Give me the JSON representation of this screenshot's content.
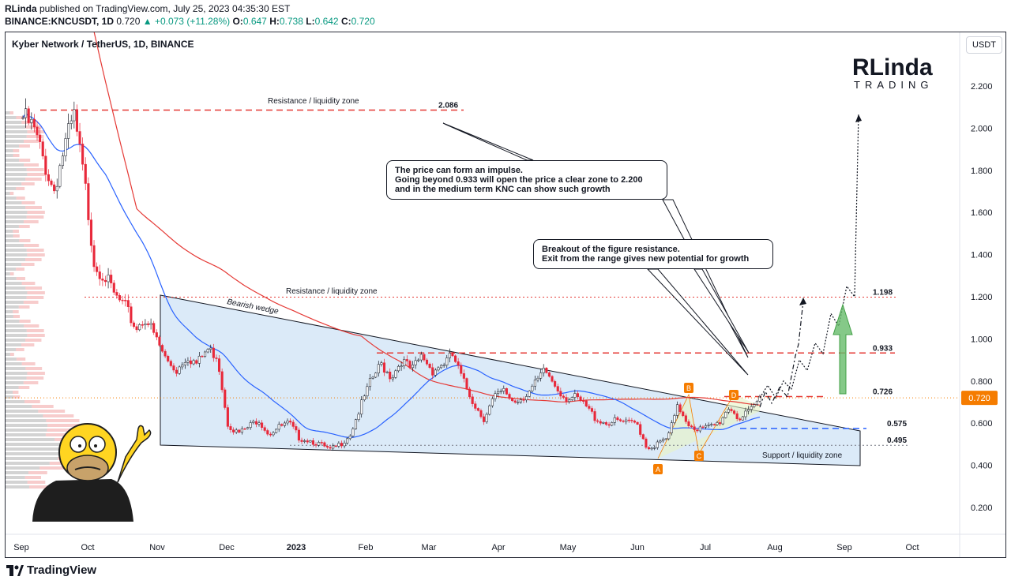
{
  "header": {
    "author": "RLinda",
    "published_text": " published on TradingView.com, July 25, 2023 04:35:30 EST",
    "symbol": "BINANCE:KNCUSDT, 1D",
    "last": "0.720",
    "change": "▲ +0.073 (+11.28%)",
    "o_label": "O:",
    "o": "0.647",
    "h_label": "H:",
    "h": "0.738",
    "l_label": "L:",
    "l": "0.642",
    "c_label": "C:",
    "c": "0.720"
  },
  "chart_title": "Kyber Network / TetherUS, 1D, BINANCE",
  "currency_button": "USDT",
  "footer_logo": "TradingView",
  "brand_logo": {
    "main": "RLinda",
    "sub": "TRADING"
  },
  "colors": {
    "up": "#089981",
    "down": "#f23645",
    "candle_up": "#ffffff",
    "candle_down": "#e8283a",
    "ma_red": "#e53935",
    "ma_blue": "#2962ff",
    "wedge_fill": "#cfe3f5",
    "resistance_line": "#e53935",
    "support_line": "#2962ff",
    "price_tag": "#f57c00",
    "arrow_green": "#66bb6a"
  },
  "callouts": {
    "first": [
      "The price can form an impulse.",
      "Going beyond 0.933 will open the price a clear zone to 2.200",
      "and in the medium term KNC can show such growth"
    ],
    "second": [
      "Breakout of the figure resistance.",
      "Exit from the range gives new potential for growth"
    ]
  },
  "annotations": {
    "resistance_top": "Resistance / liquidity zone",
    "resistance_mid": "Resistance / liquidity zone",
    "wedge": "Bearish wedge",
    "support": "Support / liquidity zone",
    "points": [
      "A",
      "B",
      "C",
      "D"
    ]
  },
  "chart_data": {
    "type": "candlestick",
    "title": "Kyber Network / TetherUS, 1D, BINANCE",
    "ylim": [
      0.1,
      2.35
    ],
    "y_ticks": [
      "2.200",
      "2.000",
      "1.800",
      "1.600",
      "1.400",
      "1.200",
      "1.000",
      "0.800",
      "0.600",
      "0.400",
      "0.200"
    ],
    "y_tick_values": [
      2.2,
      2.0,
      1.8,
      1.6,
      1.4,
      1.2,
      1.0,
      0.8,
      0.6,
      0.4,
      0.2
    ],
    "x_ticks": [
      "Sep",
      "Oct",
      "Nov",
      "Dec",
      "2023",
      "Feb",
      "Mar",
      "Apr",
      "May",
      "Jun",
      "Jul",
      "Aug",
      "Sep",
      "Oct"
    ],
    "levels": [
      {
        "label": "2.086",
        "value": 2.086,
        "style": "dashed-red"
      },
      {
        "label": "1.198",
        "value": 1.198,
        "style": "dotted-red"
      },
      {
        "label": "0.933",
        "value": 0.933,
        "style": "dashed-red"
      },
      {
        "label": "0.726",
        "value": 0.726,
        "style": "dashed-red"
      },
      {
        "label": "0.575",
        "value": 0.575,
        "style": "dashed-blue"
      },
      {
        "label": "0.495",
        "value": 0.495,
        "style": "dotted-gray"
      }
    ],
    "last_price": {
      "label": "0.720",
      "value": 0.72
    },
    "price_path": [
      2.05,
      2.0,
      1.85,
      1.7,
      1.9,
      2.05,
      1.75,
      1.35,
      1.3,
      1.2,
      1.15,
      1.05,
      1.1,
      1.0,
      0.9,
      0.85,
      0.92,
      0.88,
      0.95,
      0.92,
      0.6,
      0.55,
      0.58,
      0.62,
      0.55,
      0.58,
      0.6,
      0.53,
      0.52,
      0.5,
      0.47,
      0.5,
      0.55,
      0.68,
      0.8,
      0.88,
      0.82,
      0.9,
      0.85,
      0.92,
      0.85,
      0.88,
      0.92,
      0.8,
      0.7,
      0.62,
      0.72,
      0.75,
      0.7,
      0.73,
      0.78,
      0.85,
      0.78,
      0.72,
      0.72,
      0.68,
      0.62,
      0.6,
      0.61,
      0.6,
      0.6,
      0.48,
      0.5,
      0.53,
      0.68,
      0.6,
      0.57,
      0.58,
      0.6,
      0.68,
      0.62,
      0.65,
      0.72
    ],
    "projection": [
      0.72,
      0.78,
      0.72,
      0.8,
      0.76,
      0.9,
      0.85,
      0.98,
      0.93,
      1.12,
      1.06,
      1.25,
      1.2,
      2.07
    ]
  }
}
